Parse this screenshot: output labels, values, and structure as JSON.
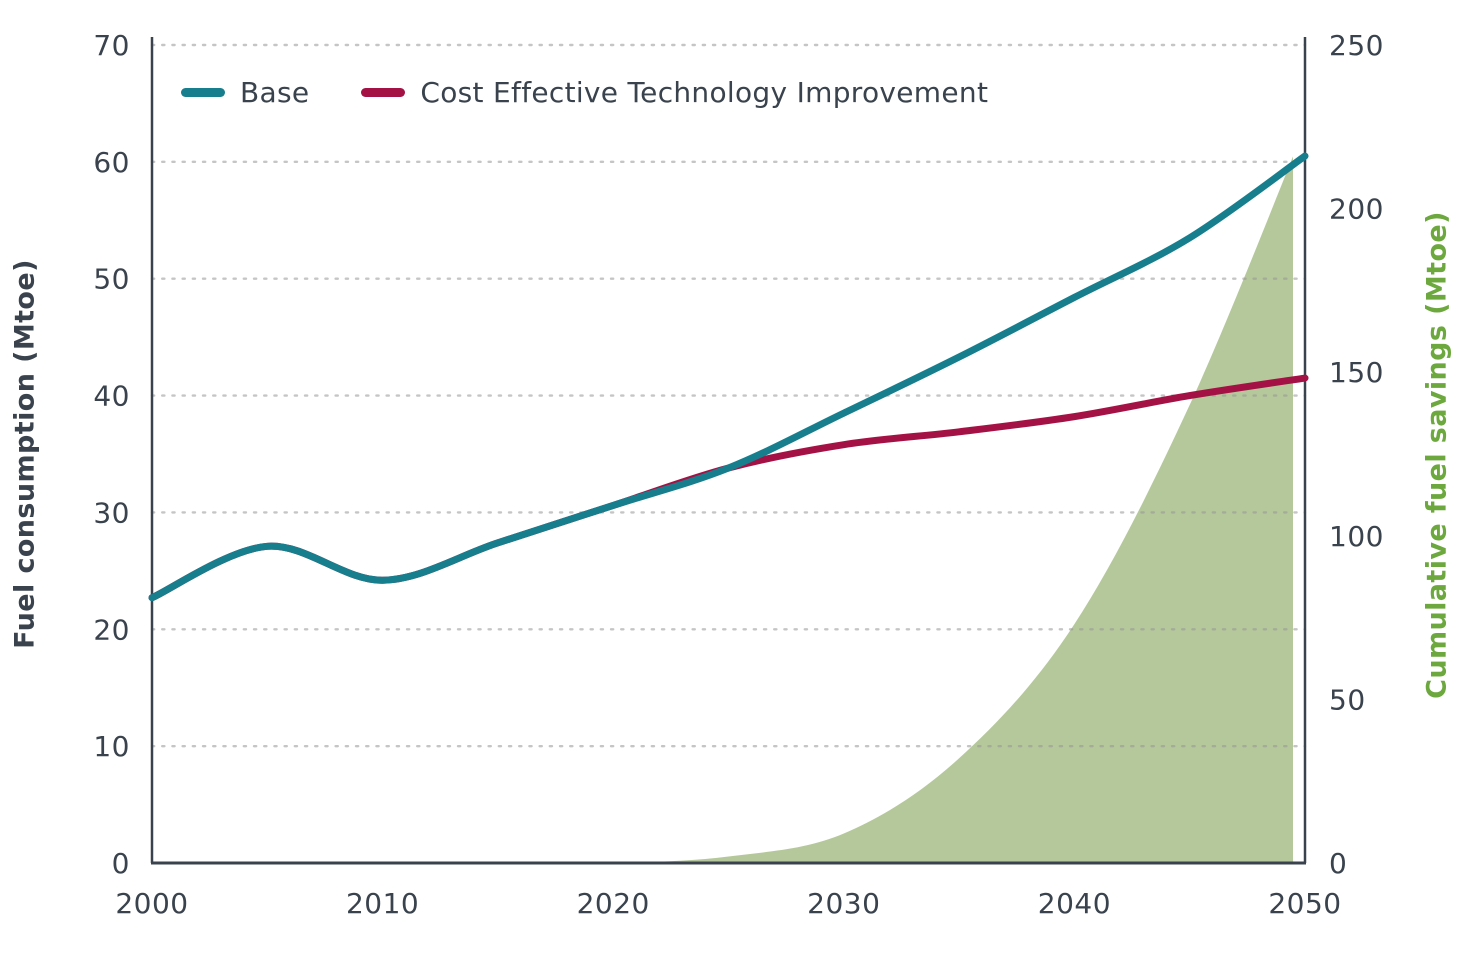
{
  "chart_data": {
    "type": "line",
    "title": "",
    "x": [
      2000,
      2005,
      2010,
      2015,
      2020,
      2025,
      2030,
      2035,
      2040,
      2045,
      2050
    ],
    "series": [
      {
        "name": "Base",
        "type": "line",
        "axis": "left",
        "color": "#177E8D",
        "values": [
          22.7,
          27.1,
          24.2,
          27.4,
          30.6,
          33.8,
          38.5,
          43.3,
          48.4,
          53.5,
          60.5
        ]
      },
      {
        "name": "Cost Effective Technology Improvement",
        "type": "line",
        "axis": "left",
        "color": "#A41245",
        "values": [
          22.7,
          27.1,
          24.2,
          27.4,
          30.6,
          33.8,
          35.8,
          36.9,
          38.2,
          40.0,
          41.5
        ]
      },
      {
        "name": "Cumulative fuel savings",
        "type": "area",
        "axis": "right",
        "color": "#B5C89B",
        "values": [
          0,
          0,
          0,
          0,
          0,
          2,
          9,
          32,
          73,
          140,
          225
        ]
      }
    ],
    "xlabel": "",
    "ylabel_left": "Fuel consumption (Mtoe)",
    "ylabel_right": "Cumulative fuel savings (Mtoe)",
    "left_axis": {
      "min": 0,
      "max": 70,
      "ticks": [
        0,
        10,
        20,
        30,
        40,
        50,
        60,
        70
      ]
    },
    "right_axis": {
      "min": 0,
      "max": 250,
      "ticks": [
        0,
        50,
        100,
        150,
        200,
        250
      ]
    },
    "x_axis": {
      "min": 2000,
      "max": 2050,
      "ticks": [
        2000,
        2010,
        2020,
        2030,
        2040,
        2050
      ]
    },
    "grid": "horizontal dotted lines at every 10 (left axis), shown including top (70)",
    "legend_position": "top-left inside plot",
    "styles": {
      "axis_line_color": "#3A434D",
      "tick_label_color": "#3A434D",
      "grid_color": "#C9C9C9",
      "right_title_color": "#6CA83E",
      "background": "#FFFFFF"
    }
  }
}
